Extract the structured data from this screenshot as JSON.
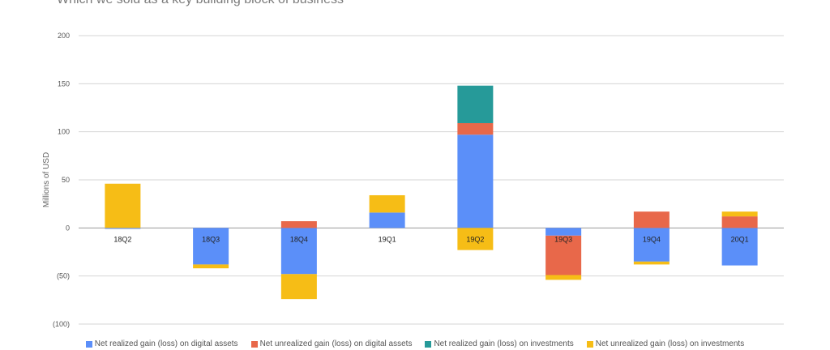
{
  "chart_data": {
    "type": "bar",
    "stacked": true,
    "title": "Which we sold as a key building block of business",
    "ylabel": "Millions of USD",
    "xlabel": "",
    "ylim": [
      -100,
      200
    ],
    "yticks": [
      200,
      150,
      100,
      50,
      0,
      -50,
      -100
    ],
    "ytick_labels": [
      "200",
      "150",
      "100",
      "50",
      "0",
      "(50)",
      "(100)"
    ],
    "grid": true,
    "legend_position": "bottom",
    "categories": [
      "18Q2",
      "18Q3",
      "18Q4",
      "19Q1",
      "19Q2",
      "19Q3",
      "19Q4",
      "20Q1"
    ],
    "series": [
      {
        "name": "Net realized gain (loss) on digital assets",
        "color": "#5b8ff9",
        "values": [
          -1,
          -38,
          -48,
          16,
          97,
          -8,
          -35,
          -39
        ]
      },
      {
        "name": "Net unrealized gain (loss) on digital assets",
        "color": "#e8684a",
        "values": [
          0,
          0,
          7,
          0,
          12,
          -41,
          17,
          12
        ]
      },
      {
        "name": "Net realized gain (loss) on investments",
        "color": "#269a99",
        "values": [
          0,
          0,
          0,
          0,
          39,
          0,
          0,
          0
        ]
      },
      {
        "name": "Net unrealized gain (loss) on investments",
        "color": "#f6bd16",
        "values": [
          46,
          -4,
          -26,
          18,
          -23,
          -5,
          -3,
          5
        ]
      }
    ]
  }
}
